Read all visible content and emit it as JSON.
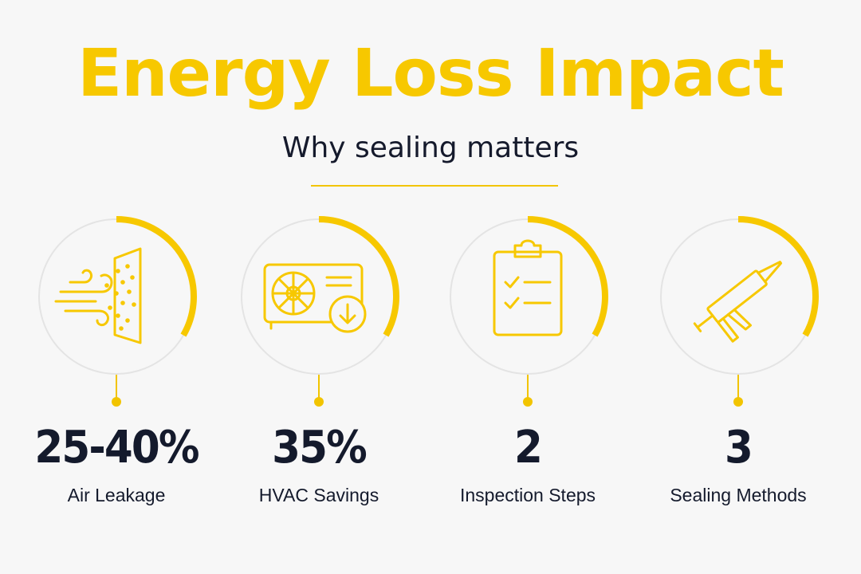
{
  "title": "Energy Loss Impact",
  "subtitle": "Why sealing matters",
  "colors": {
    "accent": "#f7c800",
    "ring": "#e4e4e4",
    "text": "#141a2c",
    "background": "#f7f7f7"
  },
  "stats": [
    {
      "value": "25-40%",
      "label": "Air Leakage",
      "icon": "air-leak-icon"
    },
    {
      "value": "35%",
      "label": "HVAC Savings",
      "icon": "hvac-unit-icon"
    },
    {
      "value": "2",
      "label": "Inspection Steps",
      "icon": "clipboard-checklist-icon"
    },
    {
      "value": "3",
      "label": "Sealing Methods",
      "icon": "caulk-gun-icon"
    }
  ]
}
